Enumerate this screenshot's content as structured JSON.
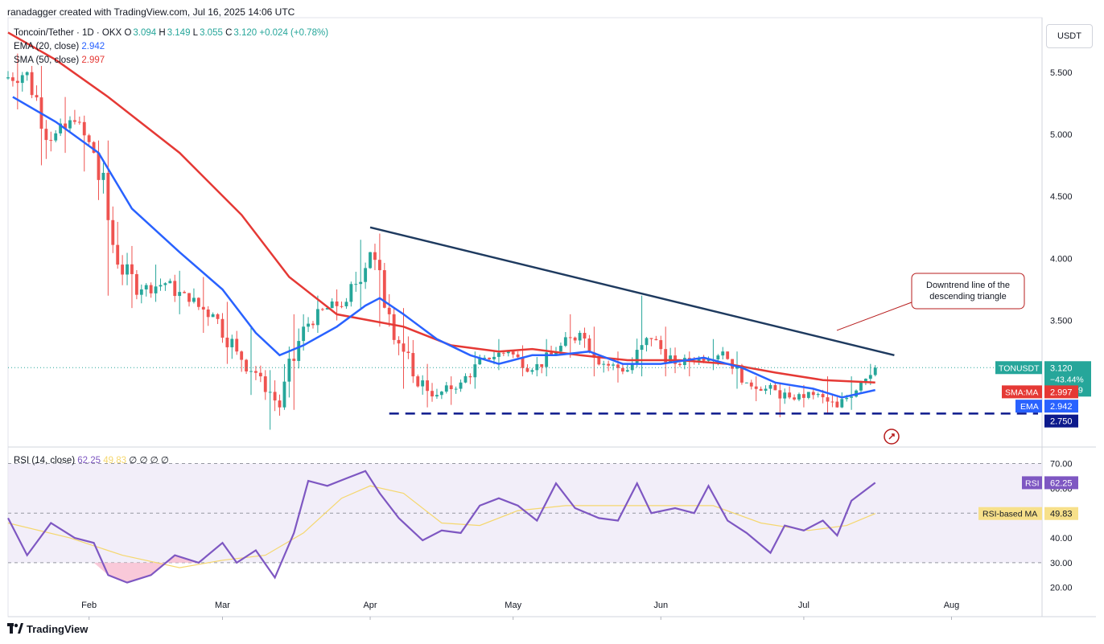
{
  "header": {
    "attribution": "ranadagger created with TradingView.com, Jul 16, 2025 14:06 UTC"
  },
  "legend": {
    "symbol": "Toncoin/Tether · 1D · OKX",
    "o_label": "O",
    "o": "3.094",
    "h_label": "H",
    "h": "3.149",
    "l_label": "L",
    "l": "3.055",
    "c_label": "C",
    "c": "3.120",
    "change": "+0.024 (+0.78%)",
    "ema_label": "EMA (20, close)",
    "ema_value": "2.942",
    "sma_label": "SMA (50, close)",
    "sma_value": "2.997",
    "rsi_label": "RSI (14, close)",
    "rsi_value": "62.25",
    "rsi_ma_value": "49.83",
    "rsi_extra": "∅ ∅ ∅ ∅"
  },
  "currency_button": "USDT",
  "annotation": "Downtrend line of the descending triangle",
  "price_badges": {
    "symbol": "TONUSDT",
    "price": "3.120",
    "change": "−43.44%",
    "countdown": "09:53:09",
    "sma_label": "SMA:MA",
    "sma_value": "2.997",
    "ema_label": "EMA",
    "ema_value": "2.942",
    "support_value": "2.750"
  },
  "rsi_badges": {
    "rsi_label": "RSI",
    "rsi_value": "62.25",
    "ma_label": "RSI-based MA",
    "ma_value": "49.83"
  },
  "footer": {
    "brand": "TradingView"
  },
  "colors": {
    "bull": "#26a69a",
    "bear": "#ef5350",
    "ema": "#2962ff",
    "sma": "#e53935",
    "trendline": "#1e3a5f",
    "support": "#0d1a8c",
    "rsi": "#7e57c2",
    "rsi_ma": "#f5d76e",
    "rsi_band": "#ede7f6"
  },
  "chart_data": [
    {
      "type": "candlestick",
      "title": "Toncoin/Tether · 1D · OKX",
      "y_ticks": [
        5.5,
        5.0,
        4.5,
        4.0,
        3.5
      ],
      "y_tick_labels": [
        "5.500",
        "5.000",
        "4.500",
        "4.000",
        "3.500"
      ],
      "ylim": [
        2.5,
        5.9
      ],
      "x_tick_labels": [
        "Feb",
        "Mar",
        "Apr",
        "May",
        "Jun",
        "Jul",
        "Aug"
      ],
      "x_tick_dates": [
        "2025-02-01",
        "2025-03-01",
        "2025-04-01",
        "2025-05-01",
        "2025-06-01",
        "2025-07-01",
        "2025-08-01"
      ],
      "x_range": [
        "2025-01-15",
        "2025-08-20"
      ],
      "ohlc_weekly": [
        {
          "date": "2025-01-15",
          "o": 5.45,
          "h": 5.65,
          "l": 5.2,
          "c": 5.5
        },
        {
          "date": "2025-01-20",
          "o": 5.5,
          "h": 5.55,
          "l": 4.75,
          "c": 4.95
        },
        {
          "date": "2025-01-25",
          "o": 4.95,
          "h": 5.3,
          "l": 4.85,
          "c": 5.1
        },
        {
          "date": "2025-01-30",
          "o": 5.1,
          "h": 5.15,
          "l": 4.7,
          "c": 4.85
        },
        {
          "date": "2025-02-03",
          "o": 4.85,
          "h": 4.95,
          "l": 3.7,
          "c": 3.95
        },
        {
          "date": "2025-02-08",
          "o": 3.95,
          "h": 4.1,
          "l": 3.6,
          "c": 3.75
        },
        {
          "date": "2025-02-13",
          "o": 3.75,
          "h": 3.95,
          "l": 3.65,
          "c": 3.8
        },
        {
          "date": "2025-02-18",
          "o": 3.8,
          "h": 3.9,
          "l": 3.55,
          "c": 3.65
        },
        {
          "date": "2025-02-23",
          "o": 3.65,
          "h": 3.85,
          "l": 3.4,
          "c": 3.55
        },
        {
          "date": "2025-02-28",
          "o": 3.55,
          "h": 3.65,
          "l": 3.15,
          "c": 3.25
        },
        {
          "date": "2025-03-05",
          "o": 3.25,
          "h": 3.45,
          "l": 2.9,
          "c": 3.05
        },
        {
          "date": "2025-03-10",
          "o": 3.05,
          "h": 3.1,
          "l": 2.62,
          "c": 2.8
        },
        {
          "date": "2025-03-14",
          "o": 2.8,
          "h": 3.55,
          "l": 2.78,
          "c": 3.45
        },
        {
          "date": "2025-03-19",
          "o": 3.45,
          "h": 3.7,
          "l": 3.4,
          "c": 3.6
        },
        {
          "date": "2025-03-24",
          "o": 3.6,
          "h": 3.75,
          "l": 3.5,
          "c": 3.65
        },
        {
          "date": "2025-03-28",
          "o": 3.65,
          "h": 4.15,
          "l": 3.6,
          "c": 4.05
        },
        {
          "date": "2025-04-02",
          "o": 4.05,
          "h": 4.2,
          "l": 3.45,
          "c": 3.55
        },
        {
          "date": "2025-04-06",
          "o": 3.55,
          "h": 3.6,
          "l": 2.95,
          "c": 3.05
        },
        {
          "date": "2025-04-11",
          "o": 3.05,
          "h": 3.15,
          "l": 2.8,
          "c": 2.9
        },
        {
          "date": "2025-04-16",
          "o": 2.9,
          "h": 3.05,
          "l": 2.82,
          "c": 3.0
        },
        {
          "date": "2025-04-21",
          "o": 3.0,
          "h": 3.25,
          "l": 2.95,
          "c": 3.2
        },
        {
          "date": "2025-04-26",
          "o": 3.2,
          "h": 3.35,
          "l": 3.1,
          "c": 3.25
        },
        {
          "date": "2025-05-01",
          "o": 3.25,
          "h": 3.3,
          "l": 3.05,
          "c": 3.1
        },
        {
          "date": "2025-05-06",
          "o": 3.1,
          "h": 3.35,
          "l": 3.05,
          "c": 3.25
        },
        {
          "date": "2025-05-11",
          "o": 3.25,
          "h": 3.55,
          "l": 3.2,
          "c": 3.4
        },
        {
          "date": "2025-05-16",
          "o": 3.4,
          "h": 3.45,
          "l": 3.05,
          "c": 3.15
        },
        {
          "date": "2025-05-21",
          "o": 3.15,
          "h": 3.25,
          "l": 3.0,
          "c": 3.1
        },
        {
          "date": "2025-05-26",
          "o": 3.1,
          "h": 3.7,
          "l": 3.05,
          "c": 3.35
        },
        {
          "date": "2025-05-31",
          "o": 3.35,
          "h": 3.45,
          "l": 3.05,
          "c": 3.15
        },
        {
          "date": "2025-06-05",
          "o": 3.15,
          "h": 3.25,
          "l": 3.05,
          "c": 3.2
        },
        {
          "date": "2025-06-10",
          "o": 3.2,
          "h": 3.35,
          "l": 3.1,
          "c": 3.25
        },
        {
          "date": "2025-06-15",
          "o": 3.25,
          "h": 3.25,
          "l": 2.95,
          "c": 3.0
        },
        {
          "date": "2025-06-20",
          "o": 3.0,
          "h": 3.05,
          "l": 2.85,
          "c": 2.95
        },
        {
          "date": "2025-06-24",
          "o": 2.95,
          "h": 3.0,
          "l": 2.72,
          "c": 2.88
        },
        {
          "date": "2025-06-29",
          "o": 2.88,
          "h": 2.98,
          "l": 2.8,
          "c": 2.9
        },
        {
          "date": "2025-07-04",
          "o": 2.9,
          "h": 3.05,
          "l": 2.75,
          "c": 2.8
        },
        {
          "date": "2025-07-09",
          "o": 2.8,
          "h": 3.05,
          "l": 2.78,
          "c": 3.0
        },
        {
          "date": "2025-07-14",
          "o": 3.0,
          "h": 3.15,
          "l": 2.98,
          "c": 3.12
        }
      ],
      "ema20": [
        [
          "2025-01-16",
          5.3
        ],
        [
          "2025-01-25",
          5.1
        ],
        [
          "2025-02-03",
          4.85
        ],
        [
          "2025-02-10",
          4.4
        ],
        [
          "2025-02-20",
          4.05
        ],
        [
          "2025-03-01",
          3.75
        ],
        [
          "2025-03-08",
          3.4
        ],
        [
          "2025-03-13",
          3.22
        ],
        [
          "2025-03-18",
          3.3
        ],
        [
          "2025-03-25",
          3.45
        ],
        [
          "2025-03-31",
          3.62
        ],
        [
          "2025-04-03",
          3.68
        ],
        [
          "2025-04-08",
          3.55
        ],
        [
          "2025-04-15",
          3.35
        ],
        [
          "2025-04-22",
          3.22
        ],
        [
          "2025-04-28",
          3.15
        ],
        [
          "2025-05-05",
          3.22
        ],
        [
          "2025-05-10",
          3.22
        ],
        [
          "2025-05-17",
          3.25
        ],
        [
          "2025-05-24",
          3.15
        ],
        [
          "2025-06-01",
          3.15
        ],
        [
          "2025-06-10",
          3.2
        ],
        [
          "2025-06-18",
          3.12
        ],
        [
          "2025-06-25",
          3.0
        ],
        [
          "2025-07-03",
          2.95
        ],
        [
          "2025-07-09",
          2.88
        ],
        [
          "2025-07-16",
          2.94
        ]
      ],
      "sma50": [
        [
          "2025-01-15",
          5.82
        ],
        [
          "2025-01-25",
          5.6
        ],
        [
          "2025-02-05",
          5.3
        ],
        [
          "2025-02-20",
          4.85
        ],
        [
          "2025-03-05",
          4.35
        ],
        [
          "2025-03-15",
          3.85
        ],
        [
          "2025-03-25",
          3.55
        ],
        [
          "2025-04-01",
          3.5
        ],
        [
          "2025-04-08",
          3.45
        ],
        [
          "2025-04-18",
          3.3
        ],
        [
          "2025-04-28",
          3.25
        ],
        [
          "2025-05-05",
          3.27
        ],
        [
          "2025-05-15",
          3.22
        ],
        [
          "2025-05-25",
          3.18
        ],
        [
          "2025-06-05",
          3.18
        ],
        [
          "2025-06-15",
          3.15
        ],
        [
          "2025-06-25",
          3.08
        ],
        [
          "2025-07-05",
          3.02
        ],
        [
          "2025-07-16",
          3.0
        ]
      ],
      "trendline": {
        "start": [
          "2025-04-01",
          4.25
        ],
        "end": [
          "2025-07-20",
          3.22
        ]
      },
      "support_line": 2.75,
      "current_price": 3.12
    },
    {
      "type": "line",
      "title": "RSI (14, close)",
      "y_ticks": [
        70,
        60,
        50,
        40,
        30,
        20
      ],
      "y_tick_labels": [
        "70.00",
        "60.00",
        "50.00",
        "40.00",
        "30.00",
        "20.00"
      ],
      "ylim": [
        17,
        76
      ],
      "band": [
        30,
        70
      ],
      "series": [
        {
          "name": "RSI",
          "points": [
            [
              "2025-01-15",
              48
            ],
            [
              "2025-01-19",
              33
            ],
            [
              "2025-01-24",
              46
            ],
            [
              "2025-01-29",
              40
            ],
            [
              "2025-02-02",
              38
            ],
            [
              "2025-02-05",
              25
            ],
            [
              "2025-02-09",
              22
            ],
            [
              "2025-02-14",
              25
            ],
            [
              "2025-02-19",
              33
            ],
            [
              "2025-02-24",
              30
            ],
            [
              "2025-03-01",
              38
            ],
            [
              "2025-03-04",
              30
            ],
            [
              "2025-03-08",
              35
            ],
            [
              "2025-03-12",
              24
            ],
            [
              "2025-03-16",
              42
            ],
            [
              "2025-03-19",
              63
            ],
            [
              "2025-03-23",
              61
            ],
            [
              "2025-03-27",
              64
            ],
            [
              "2025-03-31",
              67
            ],
            [
              "2025-04-03",
              58
            ],
            [
              "2025-04-07",
              48
            ],
            [
              "2025-04-12",
              39
            ],
            [
              "2025-04-16",
              43
            ],
            [
              "2025-04-20",
              42
            ],
            [
              "2025-04-24",
              53
            ],
            [
              "2025-04-28",
              56
            ],
            [
              "2025-05-02",
              53
            ],
            [
              "2025-05-06",
              47
            ],
            [
              "2025-05-10",
              62
            ],
            [
              "2025-05-14",
              52
            ],
            [
              "2025-05-19",
              48
            ],
            [
              "2025-05-23",
              47
            ],
            [
              "2025-05-27",
              62
            ],
            [
              "2025-05-30",
              50
            ],
            [
              "2025-06-04",
              52
            ],
            [
              "2025-06-08",
              50
            ],
            [
              "2025-06-11",
              61
            ],
            [
              "2025-06-15",
              47
            ],
            [
              "2025-06-19",
              42
            ],
            [
              "2025-06-24",
              34
            ],
            [
              "2025-06-27",
              45
            ],
            [
              "2025-07-01",
              43
            ],
            [
              "2025-07-05",
              47
            ],
            [
              "2025-07-08",
              41
            ],
            [
              "2025-07-11",
              55
            ],
            [
              "2025-07-16",
              62.25
            ]
          ]
        },
        {
          "name": "RSI-based MA",
          "points": [
            [
              "2025-01-15",
              46
            ],
            [
              "2025-01-28",
              40
            ],
            [
              "2025-02-08",
              33
            ],
            [
              "2025-02-20",
              28
            ],
            [
              "2025-03-01",
              31
            ],
            [
              "2025-03-10",
              33
            ],
            [
              "2025-03-18",
              42
            ],
            [
              "2025-03-26",
              56
            ],
            [
              "2025-04-01",
              61
            ],
            [
              "2025-04-08",
              58
            ],
            [
              "2025-04-16",
              46
            ],
            [
              "2025-04-24",
              45
            ],
            [
              "2025-05-02",
              51
            ],
            [
              "2025-05-12",
              53
            ],
            [
              "2025-05-22",
              53
            ],
            [
              "2025-06-02",
              53
            ],
            [
              "2025-06-12",
              53
            ],
            [
              "2025-06-22",
              46
            ],
            [
              "2025-07-02",
              43
            ],
            [
              "2025-07-10",
              45
            ],
            [
              "2025-07-16",
              49.83
            ]
          ]
        }
      ]
    }
  ]
}
